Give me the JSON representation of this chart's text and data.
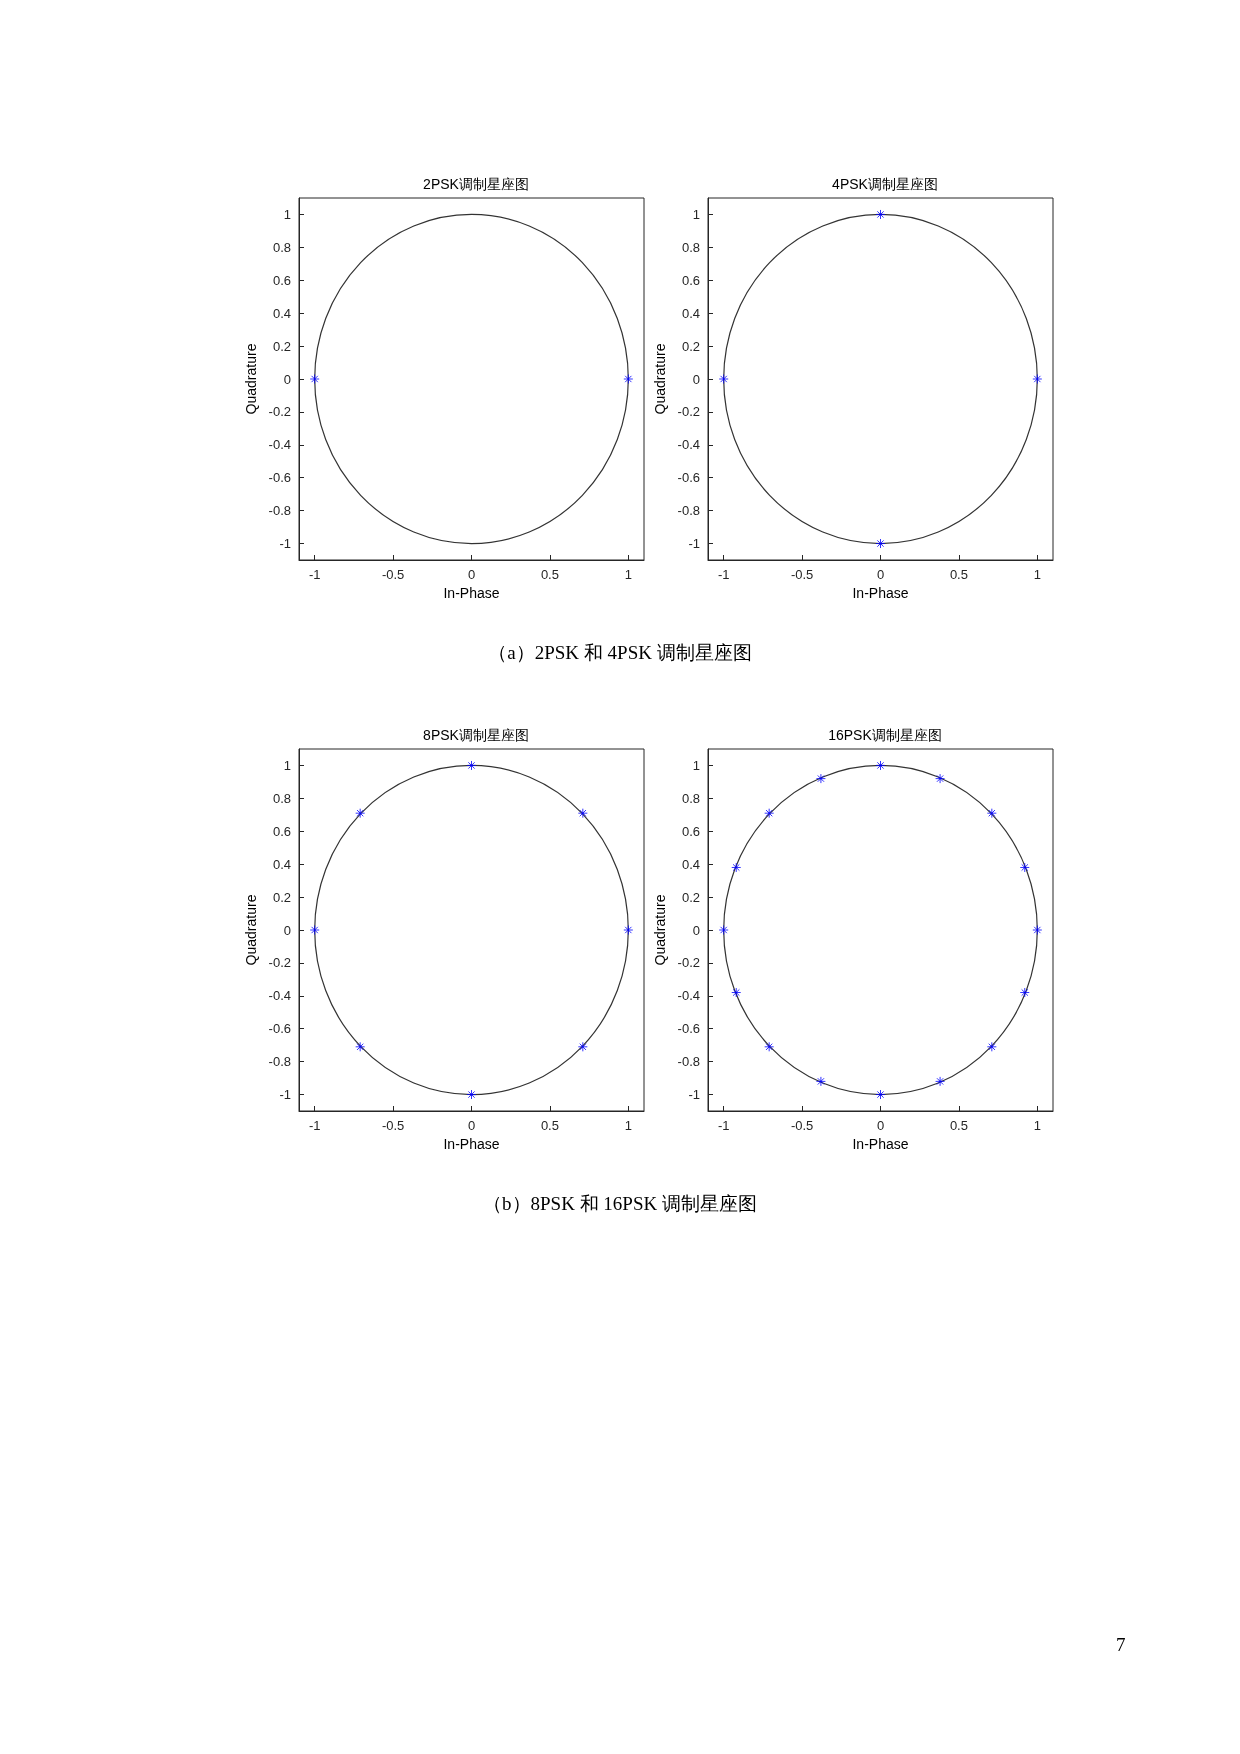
{
  "chart_data": [
    {
      "type": "scatter",
      "title": "2PSK调制星座图",
      "xlabel": "In-Phase",
      "ylabel": "Quadrature",
      "xlim": [
        -1.1,
        1.1
      ],
      "ylim": [
        -1.1,
        1.1
      ],
      "xticks": [
        -1,
        -0.5,
        0,
        0.5,
        1
      ],
      "yticks": [
        -1,
        -0.8,
        -0.6,
        -0.4,
        -0.2,
        0,
        0.2,
        0.4,
        0.6,
        0.8,
        1
      ],
      "grid": false,
      "annotations": [
        "（a）2PSK 和 4PSK 调制星座图"
      ],
      "series": [
        {
          "type": "scatter",
          "color": "#0000ff",
          "marker": "cross",
          "x": [
            -1,
            1
          ],
          "values": [
            0,
            0
          ]
        }
      ]
    },
    {
      "type": "scatter",
      "title": "4PSK调制星座图",
      "xlabel": "In-Phase",
      "ylabel": "Quadrature",
      "xlim": [
        -1.1,
        1.1
      ],
      "ylim": [
        -1.1,
        1.1
      ],
      "xticks": [
        -1,
        -0.5,
        0,
        0.5,
        1
      ],
      "yticks": [
        -1,
        -0.8,
        -0.6,
        -0.4,
        -0.2,
        0,
        0.2,
        0.4,
        0.6,
        0.8,
        1
      ],
      "grid": false,
      "series": [
        {
          "type": "scatter",
          "color": "#0000ff",
          "marker": "cross",
          "x": [
            1,
            0,
            -1,
            0
          ],
          "values": [
            0,
            1,
            0,
            -1
          ]
        }
      ]
    },
    {
      "type": "scatter",
      "title": "8PSK调制星座图",
      "xlabel": "In-Phase",
      "ylabel": "Quadrature",
      "xlim": [
        -1.1,
        1.1
      ],
      "ylim": [
        -1.1,
        1.1
      ],
      "xticks": [
        -1,
        -0.5,
        0,
        0.5,
        1
      ],
      "yticks": [
        -1,
        -0.8,
        -0.6,
        -0.4,
        -0.2,
        0,
        0.2,
        0.4,
        0.6,
        0.8,
        1
      ],
      "grid": false,
      "annotations": [
        "（b）8PSK 和 16PSK 调制星座图"
      ],
      "series": [
        {
          "type": "scatter",
          "color": "#0000ff",
          "marker": "cross",
          "x": [
            1,
            0.71,
            0,
            -0.71,
            -1,
            -0.71,
            0,
            0.71
          ],
          "values": [
            0,
            0.71,
            1,
            0.71,
            0,
            -0.71,
            -1,
            -0.71
          ]
        }
      ]
    },
    {
      "type": "scatter",
      "title": "16PSK调制星座图",
      "xlabel": "In-Phase",
      "ylabel": "Quadrature",
      "xlim": [
        -1.1,
        1.1
      ],
      "ylim": [
        -1.1,
        1.1
      ],
      "xticks": [
        -1,
        -0.5,
        0,
        0.5,
        1
      ],
      "yticks": [
        -1,
        -0.8,
        -0.6,
        -0.4,
        -0.2,
        0,
        0.2,
        0.4,
        0.6,
        0.8,
        1
      ],
      "grid": false,
      "annotations": [
        "7"
      ],
      "series": [
        {
          "type": "scatter",
          "color": "#0000ff",
          "marker": "cross",
          "x": [
            1,
            0.92,
            0.71,
            0.38,
            0,
            -0.38,
            -0.71,
            -0.92,
            -1,
            -0.92,
            -0.71,
            -0.38,
            0,
            0.38,
            0.71,
            0.92
          ],
          "values": [
            0,
            0.38,
            0.71,
            0.92,
            1,
            0.92,
            0.71,
            0.38,
            0,
            -0.38,
            -0.71,
            -0.92,
            -1,
            -0.92,
            -0.71,
            -0.38
          ]
        }
      ]
    }
  ]
}
